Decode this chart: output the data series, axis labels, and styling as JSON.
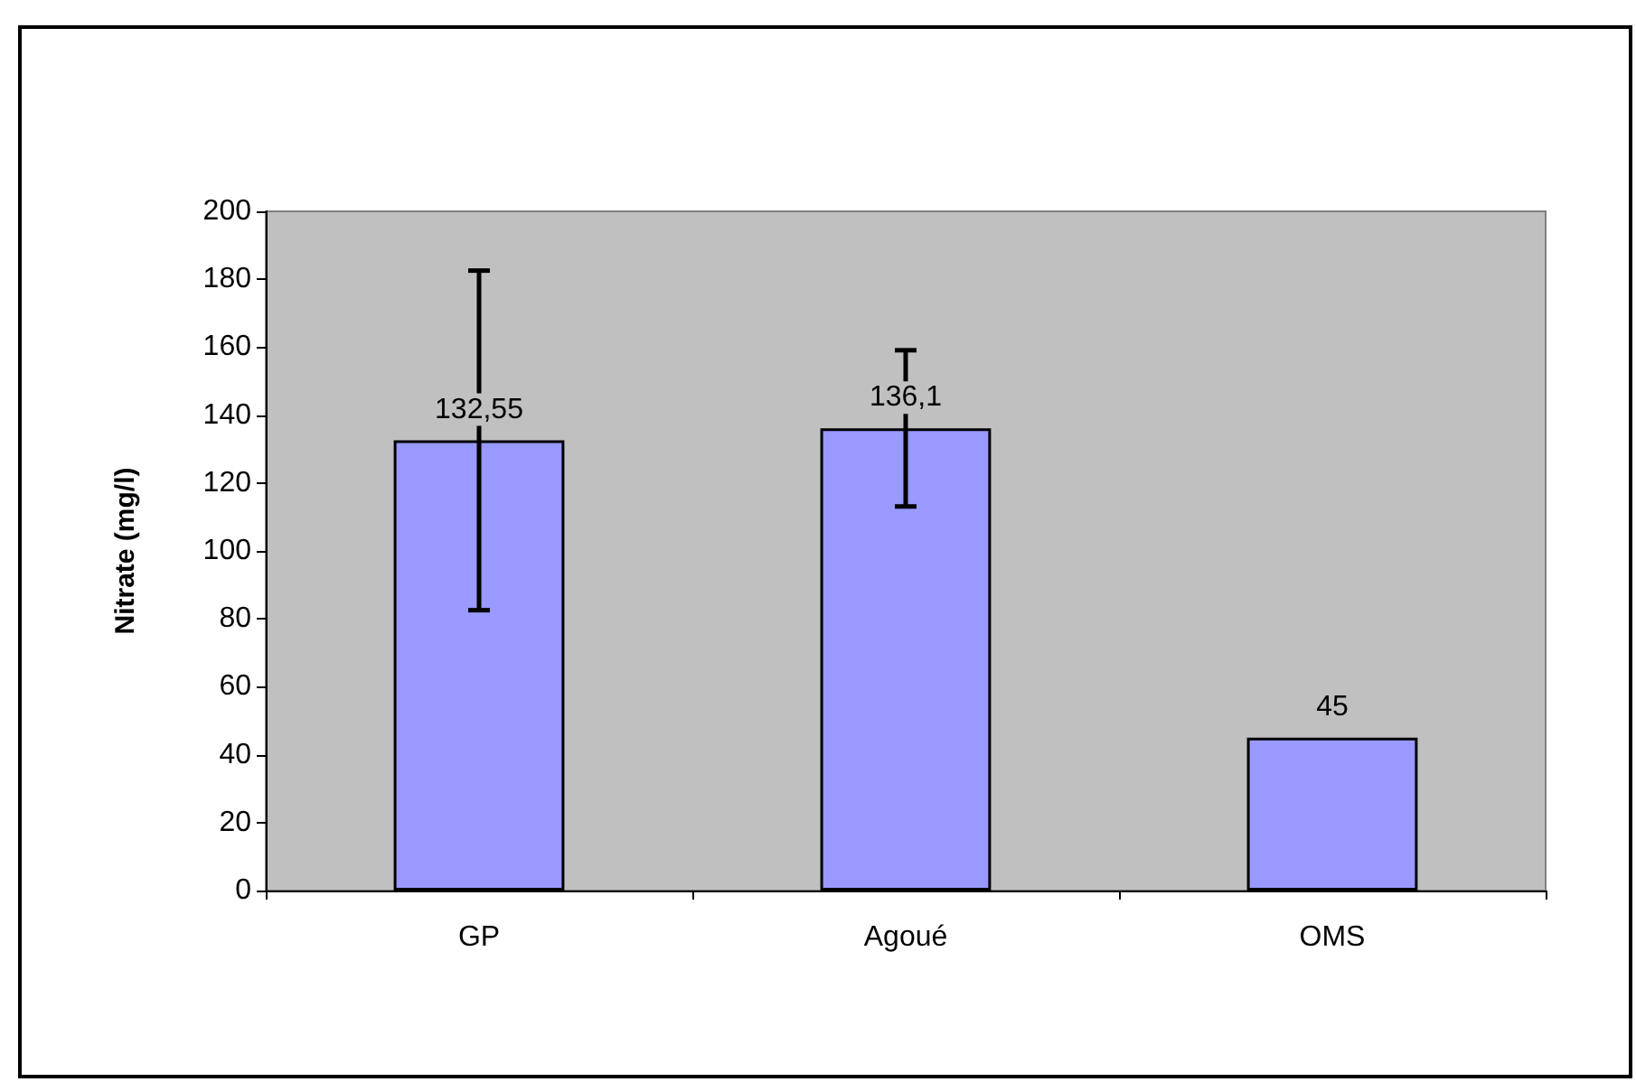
{
  "chart_data": {
    "type": "bar",
    "ylabel": "Nitrate (mg/l)",
    "categories": [
      "GP",
      "Agoué",
      "OMS"
    ],
    "values": [
      132.55,
      136.1,
      45
    ],
    "value_labels": [
      "132,55",
      "136,1",
      "45"
    ],
    "errors": [
      50,
      23,
      null
    ],
    "color": "#9999ff",
    "ylim": [
      0,
      200
    ],
    "yticks": [
      0,
      20,
      40,
      60,
      80,
      100,
      120,
      140,
      160,
      180,
      200
    ],
    "grid": false
  }
}
